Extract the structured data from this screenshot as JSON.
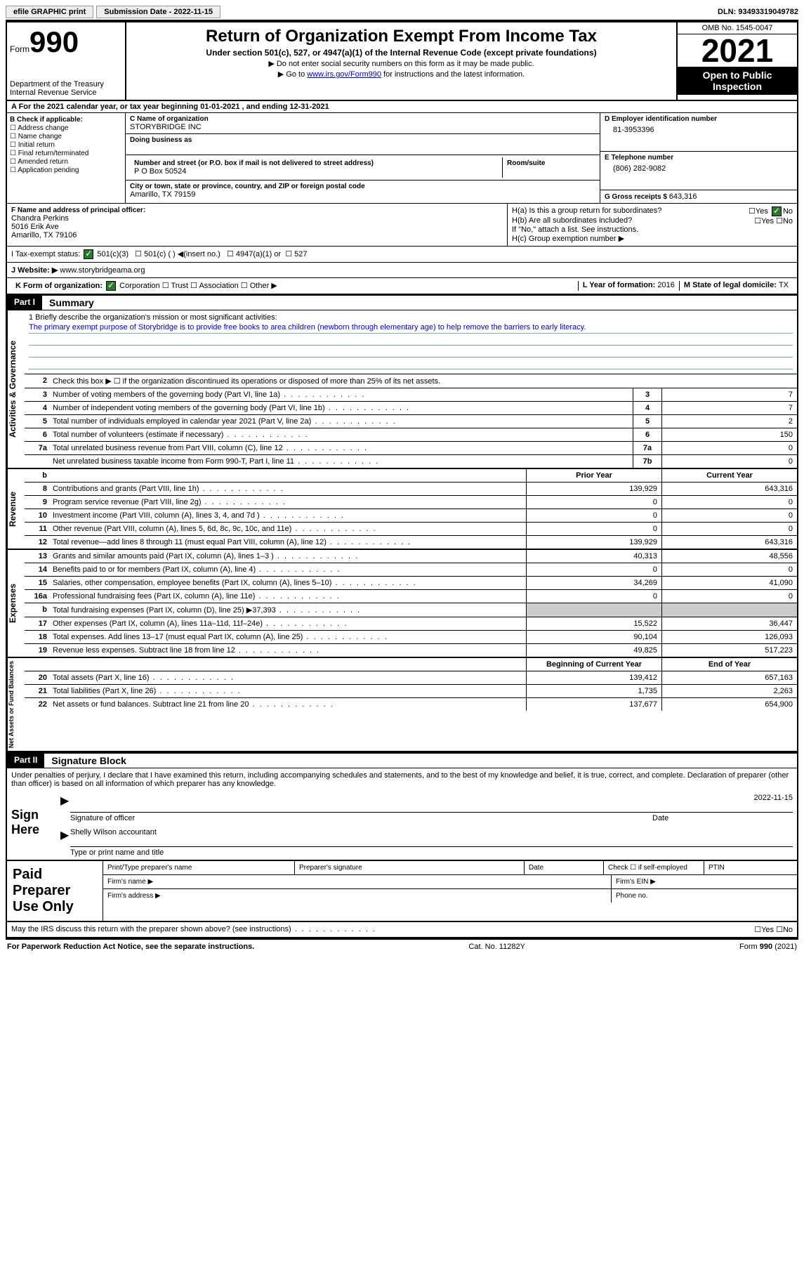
{
  "topbar": {
    "efile": "efile GRAPHIC print",
    "submission_label": "Submission Date - ",
    "submission_date": "2022-11-15",
    "dln_label": "DLN: ",
    "dln": "93493319049782"
  },
  "header": {
    "form_word": "Form",
    "form_number": "990",
    "dept": "Department of the Treasury",
    "irs": "Internal Revenue Service",
    "title": "Return of Organization Exempt From Income Tax",
    "sub1": "Under section 501(c), 527, or 4947(a)(1) of the Internal Revenue Code (except private foundations)",
    "sub2": "Do not enter social security numbers on this form as it may be made public.",
    "sub3_pre": "Go to ",
    "sub3_link": "www.irs.gov/Form990",
    "sub3_post": " for instructions and the latest information.",
    "omb": "OMB No. 1545-0047",
    "year": "2021",
    "open": "Open to Public Inspection"
  },
  "rowA": "A For the 2021 calendar year, or tax year beginning 01-01-2021    , and ending 12-31-2021",
  "boxB": {
    "title": "B Check if applicable:",
    "opts": [
      "Address change",
      "Name change",
      "Initial return",
      "Final return/terminated",
      "Amended return",
      "Application pending"
    ]
  },
  "boxC": {
    "name_lbl": "C Name of organization",
    "name": "STORYBRIDGE INC",
    "dba_lbl": "Doing business as",
    "street_lbl": "Number and street (or P.O. box if mail is not delivered to street address)",
    "room_lbl": "Room/suite",
    "street": "P O Box 50524",
    "city_lbl": "City or town, state or province, country, and ZIP or foreign postal code",
    "city": "Amarillo, TX  79159"
  },
  "boxD": {
    "ein_lbl": "D Employer identification number",
    "ein": "81-3953396",
    "phone_lbl": "E Telephone number",
    "phone": "(806) 282-9082",
    "gross_lbl": "G Gross receipts $ ",
    "gross": "643,316"
  },
  "boxF": {
    "lbl": "F Name and address of principal officer:",
    "l1": "Chandra Perkins",
    "l2": "5016 Erik Ave",
    "l3": "Amarillo, TX  79106"
  },
  "boxH": {
    "a": "H(a)  Is this a group return for subordinates?",
    "b": "H(b)  Are all subordinates included?",
    "bnote": "If \"No,\" attach a list. See instructions.",
    "c": "H(c)  Group exemption number ▶",
    "yes": "Yes",
    "no": "No"
  },
  "rowI": {
    "lbl": "I   Tax-exempt status:",
    "o1": "501(c)(3)",
    "o2": "501(c) (  ) ◀(insert no.)",
    "o3": "4947(a)(1) or",
    "o4": "527"
  },
  "rowJ": {
    "lbl": "J   Website: ▶  ",
    "val": "www.storybridgeama.org"
  },
  "rowK": {
    "lbl": "K Form of organization:",
    "o1": "Corporation",
    "o2": "Trust",
    "o3": "Association",
    "o4": "Other ▶",
    "L_lbl": "L Year of formation: ",
    "L_val": "2016",
    "M_lbl": "M State of legal domicile: ",
    "M_val": "TX"
  },
  "part1": {
    "num": "Part I",
    "title": "Summary",
    "q1_lbl": "1   Briefly describe the organization's mission or most significant activities:",
    "q1_val": "The primary exempt purpose of Storybridge is to provide free books to area children (newborn through elementary age) to help remove the barriers to early literacy.",
    "q2": "Check this box ▶ ☐  if the organization discontinued its operations or disposed of more than 25% of its net assets.",
    "sections": {
      "ag": "Activities & Governance",
      "rev": "Revenue",
      "exp": "Expenses",
      "net": "Net Assets or Fund Balances"
    },
    "hdr_prior": "Prior Year",
    "hdr_curr": "Current Year",
    "hdr_beg": "Beginning of Current Year",
    "hdr_end": "End of Year",
    "lines_top": [
      {
        "n": "3",
        "d": "Number of voting members of the governing body (Part VI, line 1a)",
        "c": "3",
        "v": "7"
      },
      {
        "n": "4",
        "d": "Number of independent voting members of the governing body (Part VI, line 1b)",
        "c": "4",
        "v": "7"
      },
      {
        "n": "5",
        "d": "Total number of individuals employed in calendar year 2021 (Part V, line 2a)",
        "c": "5",
        "v": "2"
      },
      {
        "n": "6",
        "d": "Total number of volunteers (estimate if necessary)",
        "c": "6",
        "v": "150"
      },
      {
        "n": "7a",
        "d": "Total unrelated business revenue from Part VIII, column (C), line 12",
        "c": "7a",
        "v": "0"
      },
      {
        "n": "",
        "d": "Net unrelated business taxable income from Form 990-T, Part I, line 11",
        "c": "7b",
        "v": "0"
      }
    ],
    "lines_rev": [
      {
        "n": "8",
        "d": "Contributions and grants (Part VIII, line 1h)",
        "p": "139,929",
        "c": "643,316"
      },
      {
        "n": "9",
        "d": "Program service revenue (Part VIII, line 2g)",
        "p": "0",
        "c": "0"
      },
      {
        "n": "10",
        "d": "Investment income (Part VIII, column (A), lines 3, 4, and 7d )",
        "p": "0",
        "c": "0"
      },
      {
        "n": "11",
        "d": "Other revenue (Part VIII, column (A), lines 5, 6d, 8c, 9c, 10c, and 11e)",
        "p": "0",
        "c": "0"
      },
      {
        "n": "12",
        "d": "Total revenue—add lines 8 through 11 (must equal Part VIII, column (A), line 12)",
        "p": "139,929",
        "c": "643,316"
      }
    ],
    "lines_exp": [
      {
        "n": "13",
        "d": "Grants and similar amounts paid (Part IX, column (A), lines 1–3 )",
        "p": "40,313",
        "c": "48,556"
      },
      {
        "n": "14",
        "d": "Benefits paid to or for members (Part IX, column (A), line 4)",
        "p": "0",
        "c": "0"
      },
      {
        "n": "15",
        "d": "Salaries, other compensation, employee benefits (Part IX, column (A), lines 5–10)",
        "p": "34,269",
        "c": "41,090"
      },
      {
        "n": "16a",
        "d": "Professional fundraising fees (Part IX, column (A), line 11e)",
        "p": "0",
        "c": "0"
      },
      {
        "n": "b",
        "d": "Total fundraising expenses (Part IX, column (D), line 25) ▶37,393",
        "p": "",
        "c": "",
        "grey": true
      },
      {
        "n": "17",
        "d": "Other expenses (Part IX, column (A), lines 11a–11d, 11f–24e)",
        "p": "15,522",
        "c": "36,447"
      },
      {
        "n": "18",
        "d": "Total expenses. Add lines 13–17 (must equal Part IX, column (A), line 25)",
        "p": "90,104",
        "c": "126,093"
      },
      {
        "n": "19",
        "d": "Revenue less expenses. Subtract line 18 from line 12",
        "p": "49,825",
        "c": "517,223"
      }
    ],
    "lines_net": [
      {
        "n": "20",
        "d": "Total assets (Part X, line 16)",
        "p": "139,412",
        "c": "657,163"
      },
      {
        "n": "21",
        "d": "Total liabilities (Part X, line 26)",
        "p": "1,735",
        "c": "2,263"
      },
      {
        "n": "22",
        "d": "Net assets or fund balances. Subtract line 21 from line 20",
        "p": "137,677",
        "c": "654,900"
      }
    ]
  },
  "part2": {
    "num": "Part II",
    "title": "Signature Block",
    "decl": "Under penalties of perjury, I declare that I have examined this return, including accompanying schedules and statements, and to the best of my knowledge and belief, it is true, correct, and complete. Declaration of preparer (other than officer) is based on all information of which preparer has any knowledge.",
    "sign_here": "Sign Here",
    "sig_officer": "Signature of officer",
    "sig_date": "2022-11-15",
    "date_lbl": "Date",
    "printed": "Shelly Wilson  accountant",
    "printed_lbl": "Type or print name and title",
    "paid": "Paid Preparer Use Only",
    "p_name": "Print/Type preparer's name",
    "p_sig": "Preparer's signature",
    "p_date": "Date",
    "p_check": "Check ☐ if self-employed",
    "p_ptin": "PTIN",
    "p_firm": "Firm's name   ▶",
    "p_ein": "Firm's EIN ▶",
    "p_addr": "Firm's address ▶",
    "p_phone": "Phone no.",
    "discuss": "May the IRS discuss this return with the preparer shown above? (see instructions)"
  },
  "footer": {
    "pra": "For Paperwork Reduction Act Notice, see the separate instructions.",
    "cat": "Cat. No. 11282Y",
    "form": "Form 990 (2021)"
  }
}
